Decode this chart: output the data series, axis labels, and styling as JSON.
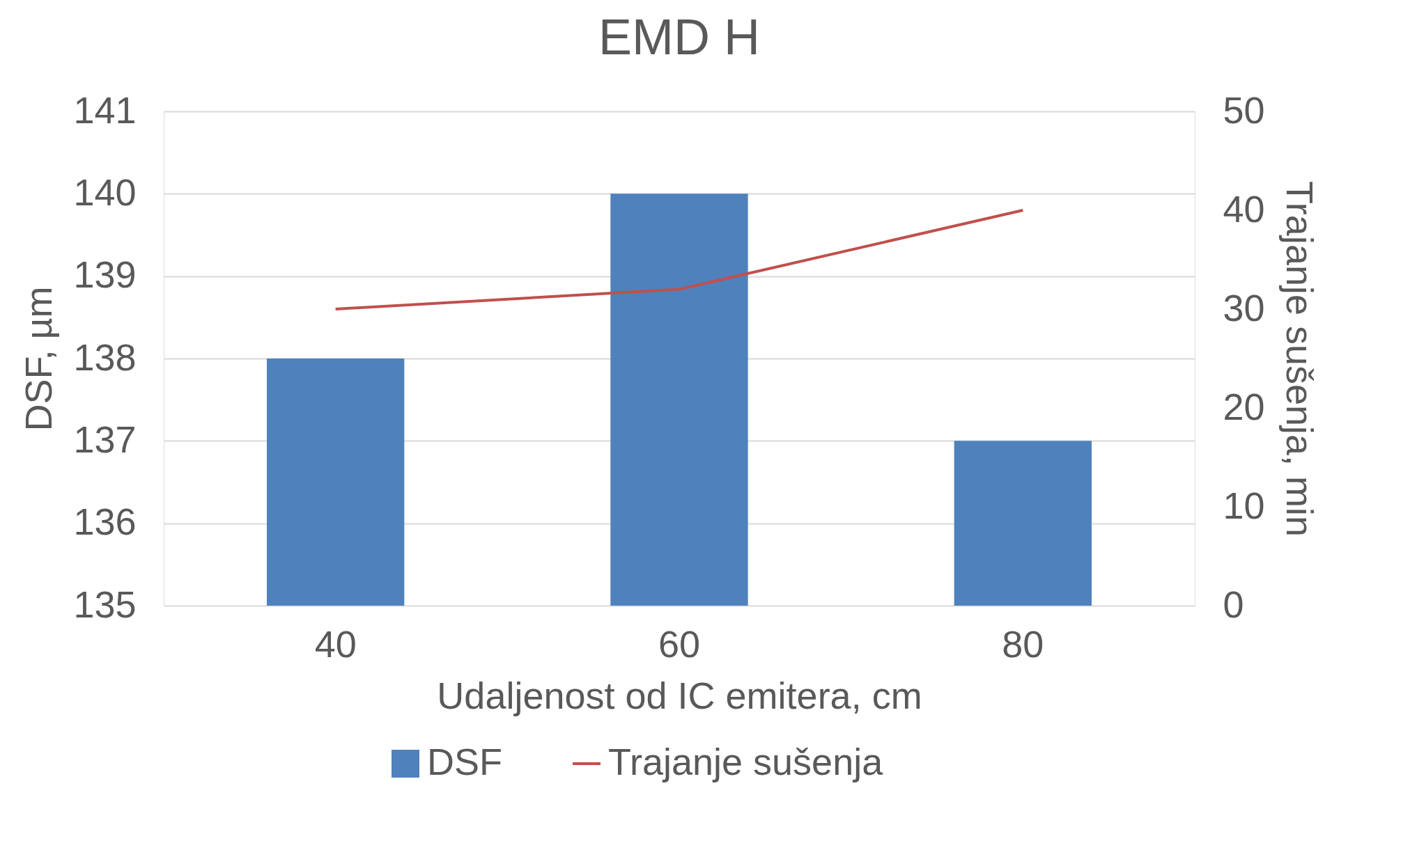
{
  "chart_data": {
    "type": "bar",
    "title": "EMD H",
    "xlabel": "Udaljenost od IC emitera, cm",
    "ylabel": "DSF, µm",
    "y2label": "Trajanje sušenja, min",
    "categories": [
      "40",
      "60",
      "80"
    ],
    "series": [
      {
        "name": "DSF",
        "color": "#4f81bd",
        "values": [
          138,
          140,
          137
        ]
      },
      {
        "name": "Trajanje sušenja",
        "type": "line",
        "axis": "y2",
        "color": "#c0504d",
        "values": [
          30,
          32,
          40
        ]
      }
    ],
    "ylim": [
      135,
      141
    ],
    "yticks": [
      135,
      136,
      137,
      138,
      139,
      140,
      141
    ],
    "y2lim": [
      0,
      50
    ],
    "y2ticks": [
      0,
      10,
      20,
      30,
      40,
      50
    ],
    "grid": "y",
    "legend": "bottom",
    "marker": "none",
    "line_style": "solid"
  }
}
